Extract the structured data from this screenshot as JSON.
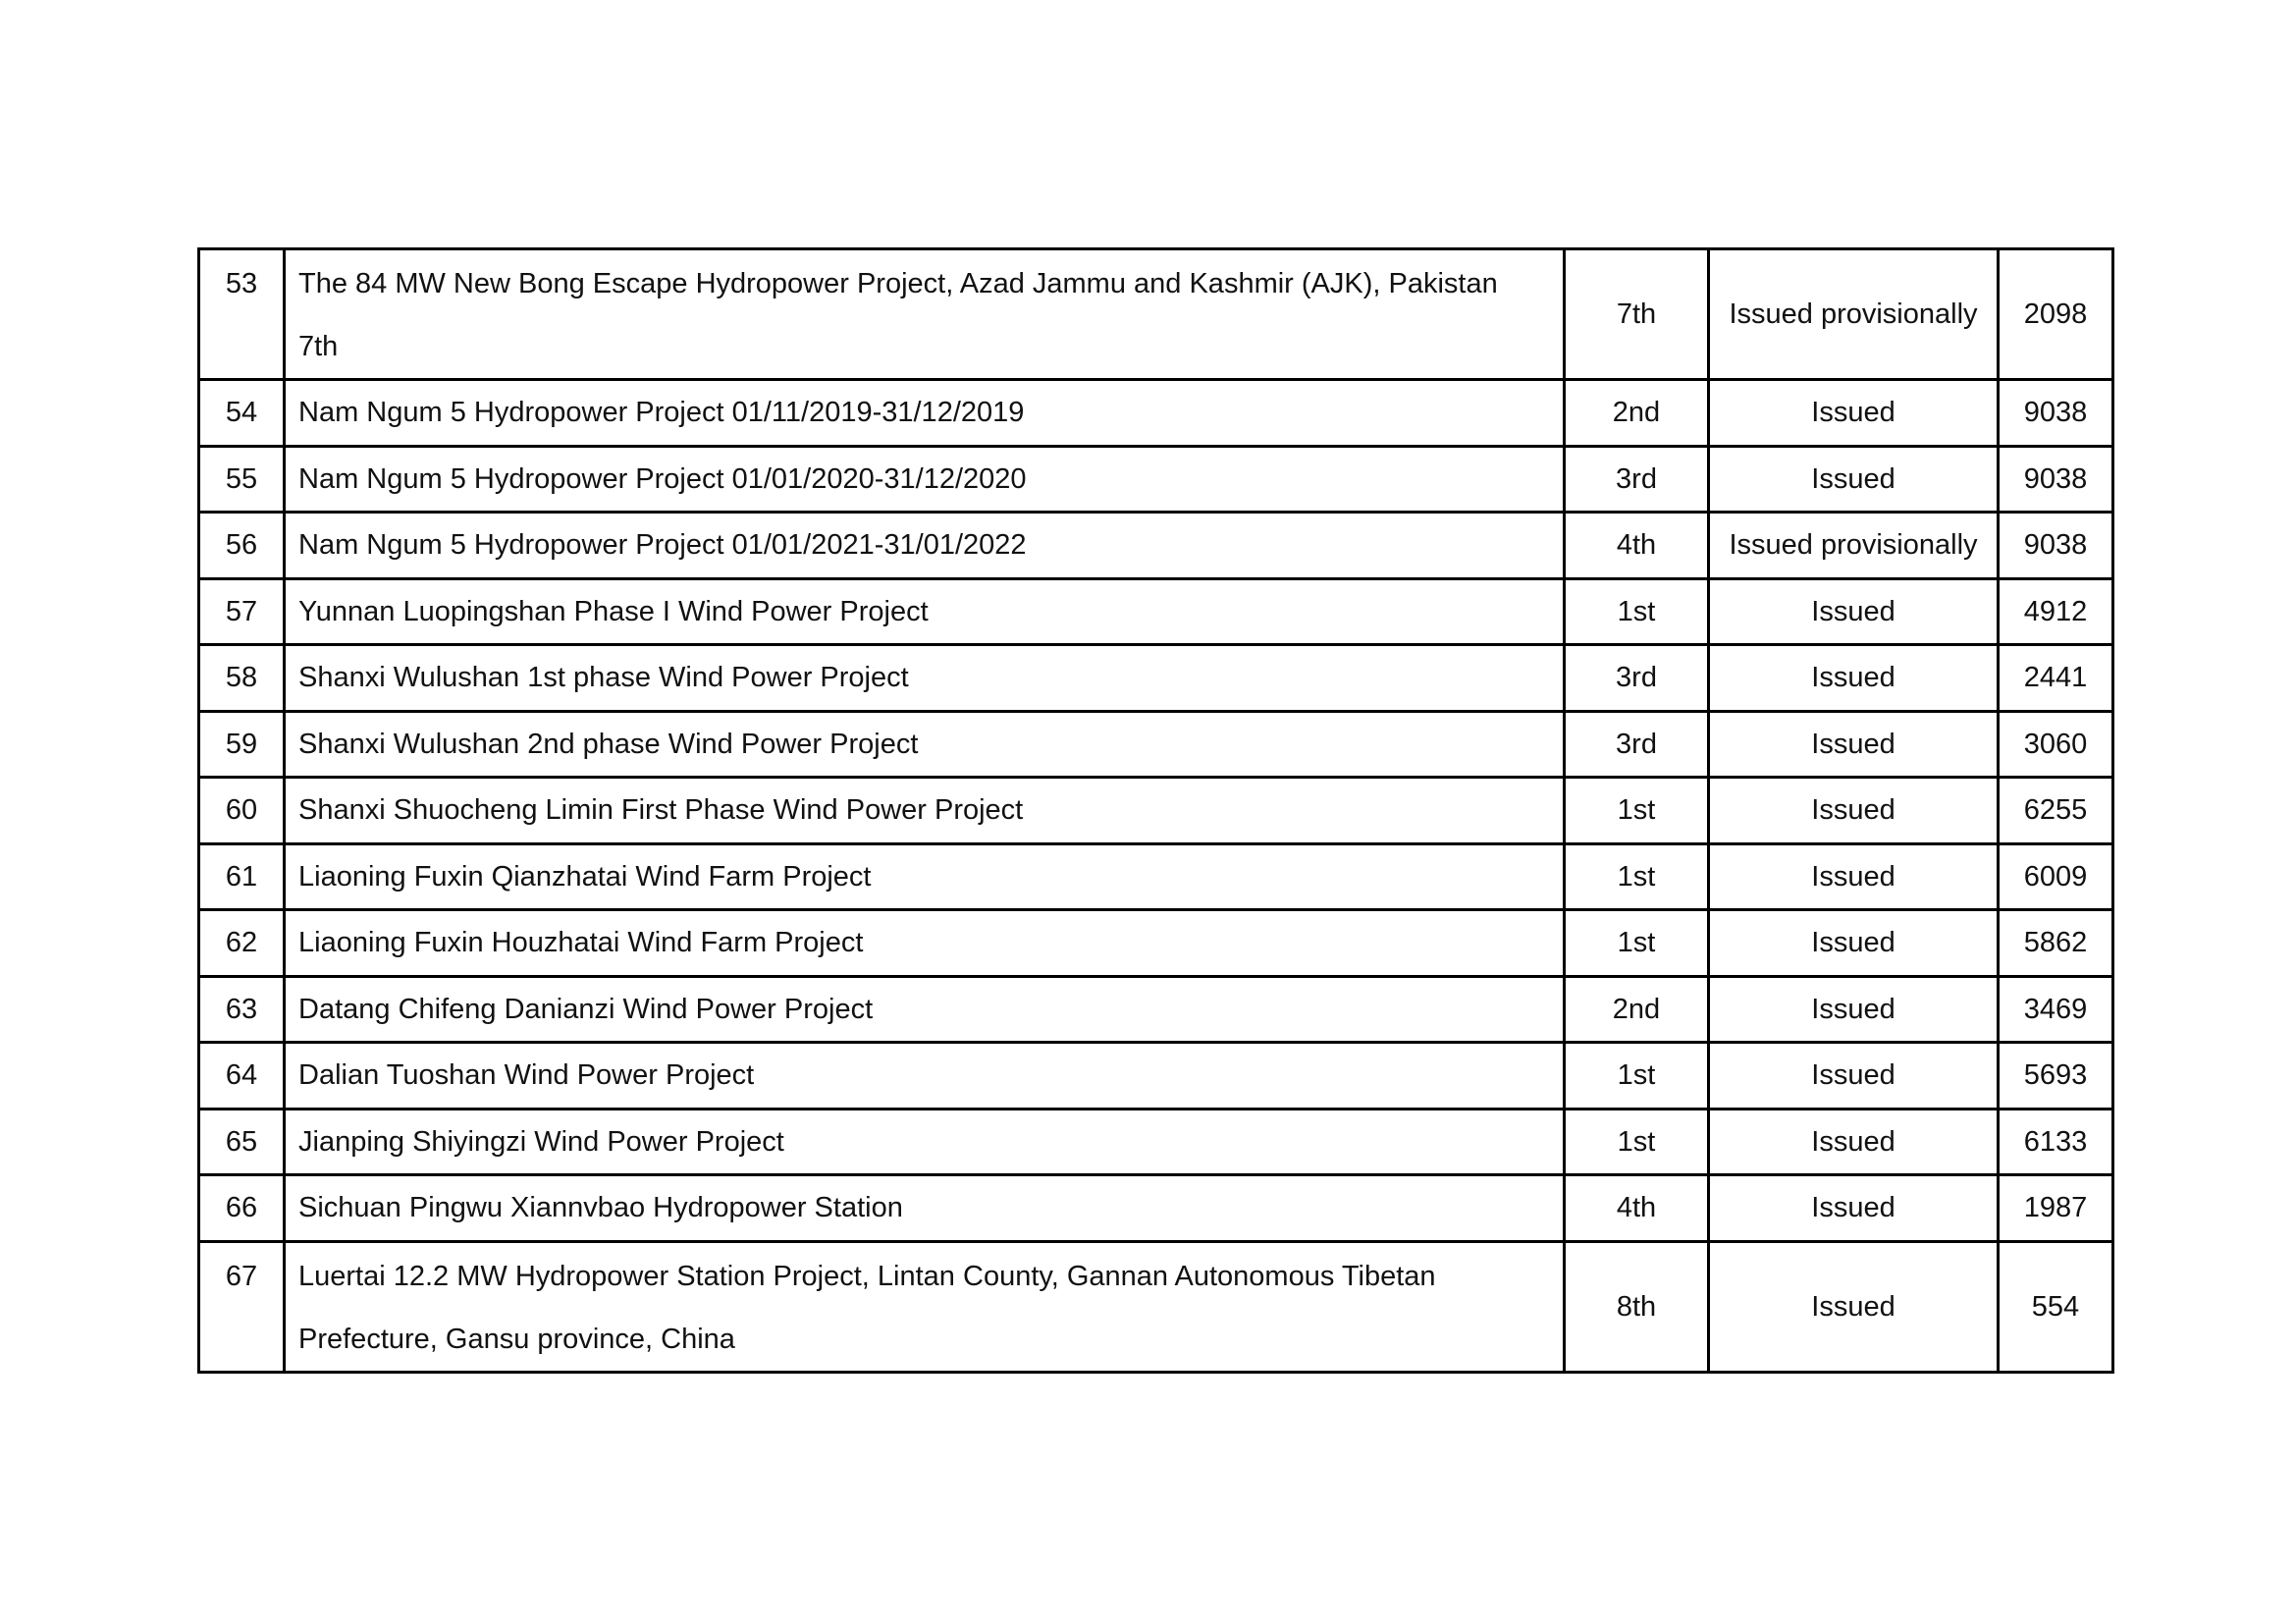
{
  "rows": [
    {
      "no": "53",
      "name": "The 84 MW New Bong Escape Hydropower Project, Azad Jammu and Kashmir (AJK), Pakistan",
      "name2": "7th",
      "issuance": "7th",
      "status": "Issued provisionally",
      "amount": "2098"
    },
    {
      "no": "54",
      "name": "Nam Ngum 5 Hydropower Project 01/11/2019-31/12/2019",
      "issuance": "2nd",
      "status": "Issued",
      "amount": "9038"
    },
    {
      "no": "55",
      "name": "Nam Ngum 5 Hydropower Project 01/01/2020-31/12/2020",
      "issuance": "3rd",
      "status": "Issued",
      "amount": "9038"
    },
    {
      "no": "56",
      "name": "Nam Ngum 5 Hydropower Project 01/01/2021-31/01/2022",
      "issuance": "4th",
      "status": "Issued provisionally",
      "amount": "9038"
    },
    {
      "no": "57",
      "name": "Yunnan Luopingshan Phase I Wind Power Project",
      "issuance": "1st",
      "status": "Issued",
      "amount": "4912"
    },
    {
      "no": "58",
      "name": "Shanxi Wulushan 1st phase Wind Power Project",
      "issuance": "3rd",
      "status": "Issued",
      "amount": "2441"
    },
    {
      "no": "59",
      "name": "Shanxi Wulushan 2nd phase Wind Power Project",
      "issuance": "3rd",
      "status": "Issued",
      "amount": "3060"
    },
    {
      "no": "60",
      "name": "Shanxi Shuocheng Limin First Phase Wind Power Project",
      "issuance": "1st",
      "status": "Issued",
      "amount": "6255"
    },
    {
      "no": "61",
      "name": "Liaoning Fuxin Qianzhatai Wind Farm Project",
      "issuance": "1st",
      "status": "Issued",
      "amount": "6009"
    },
    {
      "no": "62",
      "name": "Liaoning Fuxin Houzhatai Wind Farm Project",
      "issuance": "1st",
      "status": "Issued",
      "amount": "5862"
    },
    {
      "no": "63",
      "name": "Datang Chifeng Danianzi Wind Power Project",
      "issuance": "2nd",
      "status": "Issued",
      "amount": "3469"
    },
    {
      "no": "64",
      "name": "Dalian Tuoshan Wind Power Project",
      "issuance": "1st",
      "status": "Issued",
      "amount": "5693"
    },
    {
      "no": "65",
      "name": "Jianping Shiyingzi Wind Power Project",
      "issuance": "1st",
      "status": "Issued",
      "amount": "6133"
    },
    {
      "no": "66",
      "name": "Sichuan Pingwu Xiannvbao Hydropower Station",
      "issuance": "4th",
      "status": "Issued",
      "amount": "1987"
    },
    {
      "no": "67",
      "name": "Luertai 12.2 MW Hydropower Station Project, Lintan County, Gannan Autonomous Tibetan",
      "name2": "Prefecture, Gansu province, China",
      "issuance": "8th",
      "status": "Issued",
      "amount": "554"
    }
  ]
}
